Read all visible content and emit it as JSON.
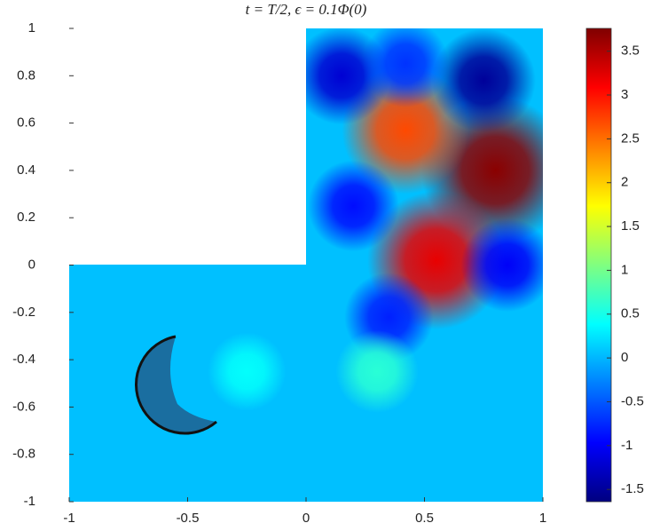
{
  "chart_data": {
    "type": "heatmap",
    "title": "t = T/2,  ϵ = 0.1Φ(0)",
    "colormap": "jet",
    "xlim": [
      -1,
      1
    ],
    "ylim": [
      -1,
      1
    ],
    "xticks": [
      -1,
      -0.5,
      0,
      0.5,
      1
    ],
    "yticks": [
      -1,
      -0.8,
      -0.6,
      -0.4,
      -0.2,
      0,
      0.2,
      0.4,
      0.6,
      0.8,
      1
    ],
    "clim": [
      -1.64,
      3.76
    ],
    "cticks": [
      -1.5,
      -1,
      -0.5,
      0,
      0.5,
      1,
      1.5,
      2,
      2.5,
      3,
      3.5
    ],
    "background": 0.05,
    "peaks": [
      {
        "x": 0.8,
        "y": 0.4,
        "value": 3.7
      },
      {
        "x": 0.42,
        "y": 0.57,
        "value": 2.7
      },
      {
        "x": 0.55,
        "y": 0.02,
        "value": 3.2
      },
      {
        "x": 0.75,
        "y": 0.78,
        "value": -1.5
      },
      {
        "x": 0.15,
        "y": 0.8,
        "value": -1.2
      },
      {
        "x": 0.2,
        "y": 0.25,
        "value": -0.9
      },
      {
        "x": 0.85,
        "y": 0.0,
        "value": -1.0
      },
      {
        "x": 0.35,
        "y": -0.22,
        "value": -0.8
      },
      {
        "x": 0.42,
        "y": 0.85,
        "value": -0.7
      },
      {
        "x": 0.3,
        "y": -0.45,
        "value": 0.6
      },
      {
        "x": -0.25,
        "y": -0.45,
        "value": 0.4
      }
    ]
  }
}
